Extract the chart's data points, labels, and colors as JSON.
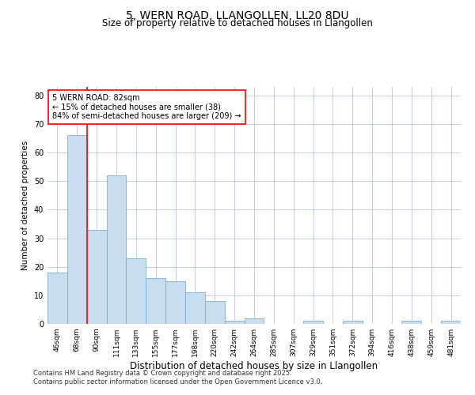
{
  "title1": "5, WERN ROAD, LLANGOLLEN, LL20 8DU",
  "title2": "Size of property relative to detached houses in Llangollen",
  "xlabel": "Distribution of detached houses by size in Llangollen",
  "ylabel": "Number of detached properties",
  "bar_color": "#c9ddf0",
  "bar_edge_color": "#7bafd4",
  "grid_color": "#b8c8dc",
  "plot_bg_color": "#ffffff",
  "fig_bg_color": "#ffffff",
  "categories": [
    "46sqm",
    "68sqm",
    "90sqm",
    "111sqm",
    "133sqm",
    "155sqm",
    "177sqm",
    "198sqm",
    "220sqm",
    "242sqm",
    "264sqm",
    "285sqm",
    "307sqm",
    "329sqm",
    "351sqm",
    "372sqm",
    "394sqm",
    "416sqm",
    "438sqm",
    "459sqm",
    "481sqm"
  ],
  "values": [
    18,
    66,
    33,
    52,
    23,
    16,
    15,
    11,
    8,
    1,
    2,
    0,
    0,
    1,
    0,
    1,
    0,
    0,
    1,
    0,
    1
  ],
  "ylim": [
    0,
    83
  ],
  "yticks": [
    0,
    10,
    20,
    30,
    40,
    50,
    60,
    70,
    80
  ],
  "vline_x": 2.0,
  "annotation_text": "5 WERN ROAD: 82sqm\n← 15% of detached houses are smaller (38)\n84% of semi-detached houses are larger (209) →",
  "annotation_box_color": "white",
  "annotation_box_edge_color": "red",
  "vline_color": "red",
  "footnote1": "Contains HM Land Registry data © Crown copyright and database right 2025.",
  "footnote2": "Contains public sector information licensed under the Open Government Licence v3.0.",
  "title1_fontsize": 10,
  "title2_fontsize": 8.5,
  "xlabel_fontsize": 8.5,
  "ylabel_fontsize": 7.5,
  "tick_fontsize": 6.5,
  "annot_fontsize": 7,
  "footnote_fontsize": 6
}
